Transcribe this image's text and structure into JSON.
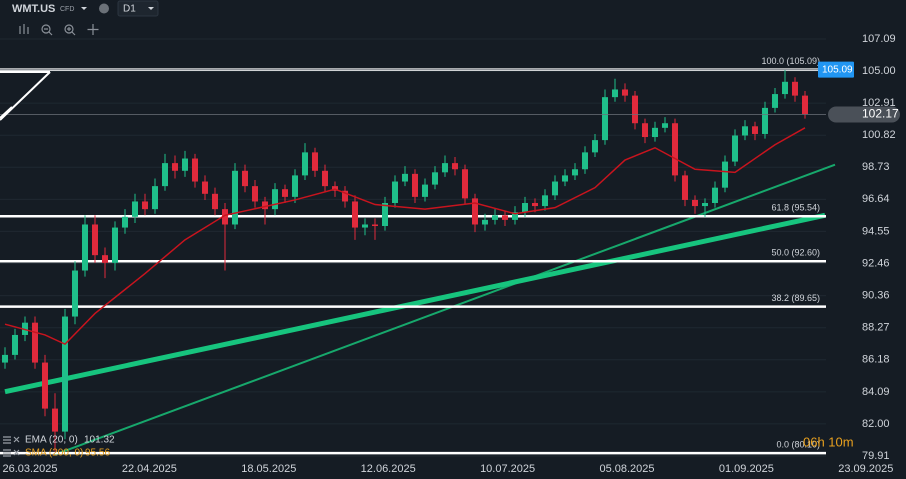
{
  "chart_data": {
    "type": "candlestick",
    "symbol": "WMT.US",
    "instrument": "CFD",
    "timeframe": "D1",
    "colors": {
      "up": "#1fbf8a",
      "down": "#e02a3c",
      "ema": "#c8141e",
      "sma": "#17c47e",
      "trend": "#17a86c",
      "fib": "#ffffff"
    },
    "ylim": [
      79.91,
      107.09
    ],
    "yticks": [
      107.09,
      {
        "value": 105.0,
        "label": "105.00"
      },
      102.91,
      100.82,
      98.73,
      96.64,
      94.55,
      92.46,
      90.36,
      88.27,
      86.18,
      84.09,
      {
        "value": 82.0,
        "label": "82.00"
      },
      79.91
    ],
    "grid": true,
    "dates": [
      "26.03.2025",
      "22.04.2025",
      "18.05.2025",
      "12.06.2025",
      "10.07.2025",
      "05.08.2025",
      "01.09.2025",
      "23.09.2025"
    ],
    "ohlc": [
      [
        86.0,
        87.0,
        85.6,
        86.5
      ],
      [
        86.5,
        88.2,
        86.2,
        87.8
      ],
      [
        87.8,
        89.0,
        87.4,
        88.6
      ],
      [
        88.6,
        89.0,
        85.6,
        86.0
      ],
      [
        86.0,
        86.5,
        82.5,
        83.0
      ],
      [
        83.0,
        84.0,
        80.2,
        81.5
      ],
      [
        81.5,
        89.5,
        81.0,
        89.0
      ],
      [
        89.0,
        92.6,
        88.5,
        92.0
      ],
      [
        92.0,
        95.6,
        91.6,
        95.0
      ],
      [
        95.0,
        95.6,
        92.5,
        93.0
      ],
      [
        93.0,
        93.5,
        91.5,
        92.5
      ],
      [
        92.5,
        95.2,
        92.0,
        94.8
      ],
      [
        94.8,
        96.0,
        94.4,
        95.5
      ],
      [
        95.5,
        97.0,
        95.1,
        96.5
      ],
      [
        96.5,
        97.0,
        95.6,
        96.0
      ],
      [
        96.0,
        98.0,
        95.7,
        97.5
      ],
      [
        97.5,
        99.6,
        97.2,
        99.0
      ],
      [
        99.0,
        99.5,
        98.0,
        98.5
      ],
      [
        98.5,
        99.8,
        98.1,
        99.3
      ],
      [
        99.3,
        99.6,
        97.4,
        97.8
      ],
      [
        97.8,
        98.2,
        96.6,
        97.0
      ],
      [
        97.0,
        97.4,
        95.6,
        96.0
      ],
      [
        96.0,
        96.4,
        92.0,
        95.0
      ],
      [
        95.0,
        99.0,
        94.7,
        98.5
      ],
      [
        98.5,
        98.9,
        97.1,
        97.5
      ],
      [
        97.5,
        97.9,
        96.1,
        96.5
      ],
      [
        96.5,
        96.8,
        95.0,
        96.0
      ],
      [
        96.0,
        97.7,
        95.6,
        97.3
      ],
      [
        97.3,
        97.6,
        96.4,
        96.8
      ],
      [
        96.8,
        98.6,
        96.4,
        98.2
      ],
      [
        98.2,
        100.3,
        97.9,
        99.7
      ],
      [
        99.7,
        100.0,
        98.1,
        98.5
      ],
      [
        98.5,
        98.9,
        97.1,
        97.5
      ],
      [
        97.5,
        97.8,
        96.8,
        97.2
      ],
      [
        97.2,
        97.5,
        96.1,
        96.5
      ],
      [
        96.5,
        96.9,
        94.0,
        94.8
      ],
      [
        94.8,
        95.4,
        94.3,
        95.0
      ],
      [
        95.0,
        95.4,
        94.0,
        94.9
      ],
      [
        94.9,
        96.8,
        94.6,
        96.4
      ],
      [
        96.4,
        98.2,
        96.1,
        97.8
      ],
      [
        97.8,
        98.8,
        97.5,
        98.3
      ],
      [
        98.3,
        98.6,
        96.4,
        96.8
      ],
      [
        96.8,
        98.0,
        96.5,
        97.6
      ],
      [
        97.6,
        98.8,
        97.3,
        98.4
      ],
      [
        98.4,
        99.5,
        98.1,
        99.0
      ],
      [
        99.0,
        99.4,
        98.2,
        98.6
      ],
      [
        98.6,
        98.9,
        96.3,
        96.7
      ],
      [
        96.7,
        97.0,
        94.5,
        95.0
      ],
      [
        95.0,
        95.7,
        94.6,
        95.3
      ],
      [
        95.3,
        96.0,
        95.0,
        95.6
      ],
      [
        95.6,
        95.9,
        94.9,
        95.3
      ],
      [
        95.3,
        96.2,
        95.0,
        95.8
      ],
      [
        95.8,
        96.8,
        95.5,
        96.4
      ],
      [
        96.4,
        96.7,
        95.8,
        96.2
      ],
      [
        96.2,
        97.3,
        95.9,
        96.9
      ],
      [
        96.9,
        98.2,
        96.6,
        97.8
      ],
      [
        97.8,
        98.6,
        97.5,
        98.2
      ],
      [
        98.2,
        99.0,
        97.9,
        98.6
      ],
      [
        98.6,
        100.1,
        98.3,
        99.7
      ],
      [
        99.7,
        100.9,
        99.4,
        100.5
      ],
      [
        100.5,
        103.8,
        100.2,
        103.3
      ],
      [
        103.3,
        104.5,
        103.0,
        103.8
      ],
      [
        103.8,
        104.2,
        103.0,
        103.4
      ],
      [
        103.4,
        103.7,
        101.2,
        101.6
      ],
      [
        101.6,
        101.9,
        100.3,
        100.7
      ],
      [
        100.7,
        101.7,
        100.4,
        101.3
      ],
      [
        101.3,
        102.0,
        101.0,
        101.6
      ],
      [
        101.6,
        101.9,
        97.8,
        98.2
      ],
      [
        98.2,
        98.5,
        96.2,
        96.6
      ],
      [
        96.6,
        96.9,
        95.7,
        96.2
      ],
      [
        96.2,
        96.7,
        95.5,
        96.4
      ],
      [
        96.4,
        97.8,
        96.1,
        97.4
      ],
      [
        97.4,
        99.5,
        97.1,
        99.1
      ],
      [
        99.1,
        101.2,
        98.8,
        100.8
      ],
      [
        100.8,
        101.8,
        100.5,
        101.4
      ],
      [
        101.4,
        101.7,
        100.5,
        100.9
      ],
      [
        100.9,
        103.0,
        100.6,
        102.6
      ],
      [
        102.6,
        103.9,
        102.3,
        103.5
      ],
      [
        103.5,
        105.1,
        103.2,
        104.3
      ],
      [
        104.3,
        104.6,
        103.0,
        103.4
      ],
      [
        103.4,
        103.7,
        101.9,
        102.2
      ]
    ],
    "ema": {
      "x": [
        0,
        4,
        6,
        9,
        14,
        18,
        22,
        29,
        33,
        37,
        42,
        47,
        51,
        55,
        59,
        62,
        65,
        69,
        73,
        77,
        80
      ],
      "values": [
        88.5,
        87.8,
        87.2,
        89.2,
        91.8,
        94.0,
        95.6,
        96.6,
        97.3,
        96.3,
        96.0,
        96.4,
        95.7,
        96.1,
        97.4,
        99.2,
        100.0,
        98.6,
        98.4,
        100.2,
        101.3
      ]
    },
    "sma": {
      "x": [
        0,
        82
      ],
      "values": [
        84.1,
        95.6
      ]
    },
    "trendline": {
      "x": [
        5,
        83
      ],
      "values": [
        80.0,
        98.9
      ]
    },
    "fib_levels": [
      {
        "value": 105.09,
        "label": "100.0 (105.09)"
      },
      {
        "value": 95.54,
        "label": "61.8 (95.54)"
      },
      {
        "value": 92.6,
        "label": "50.0 (92.60)"
      },
      {
        "value": 89.65,
        "label": "38.2 (89.65)"
      },
      {
        "value": 80.1,
        "label": "0.0 (80.10)"
      }
    ],
    "price_badges": [
      {
        "value": 105.09,
        "color": "#2196f3"
      },
      {
        "value": 102.17,
        "color": "#4a5058"
      }
    ],
    "legend": [
      {
        "name": "EMA (20, 0)",
        "value": 101.32,
        "color": "#d0d4da"
      },
      {
        "name": "SMA (200, 0)",
        "value": 95.56,
        "color": "#e8a01e"
      }
    ],
    "countdown": "06h 10m"
  }
}
